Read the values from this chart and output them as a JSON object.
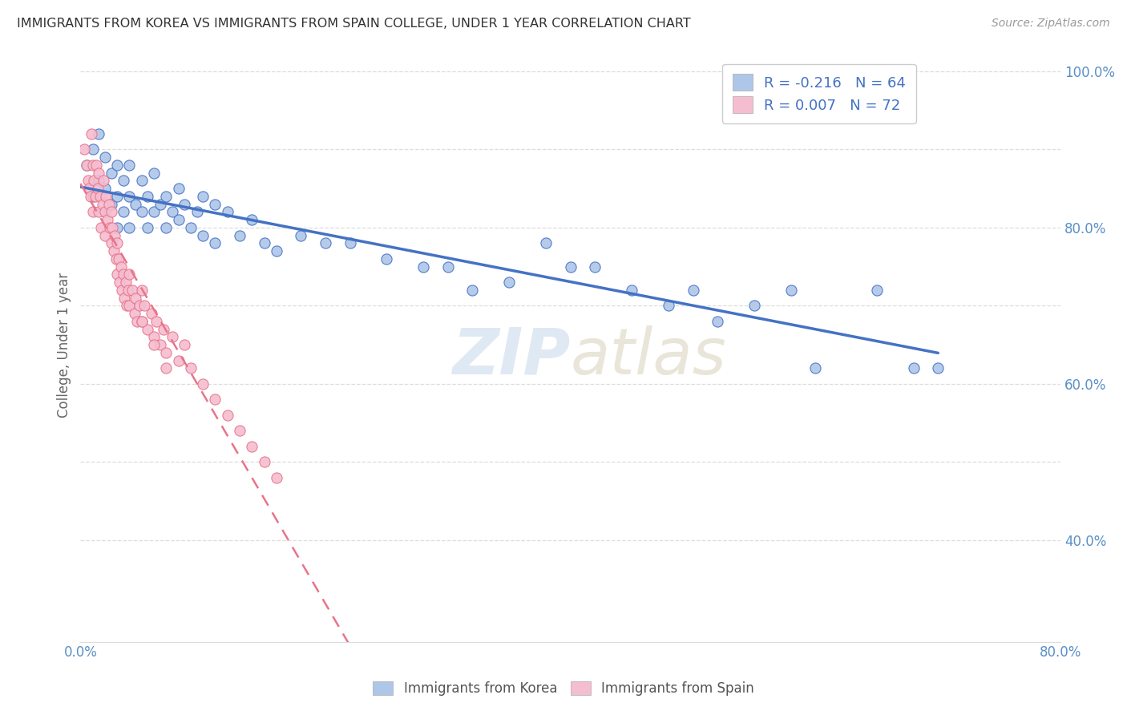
{
  "title": "IMMIGRANTS FROM KOREA VS IMMIGRANTS FROM SPAIN COLLEGE, UNDER 1 YEAR CORRELATION CHART",
  "source": "Source: ZipAtlas.com",
  "ylabel": "College, Under 1 year",
  "korea_R": -0.216,
  "korea_N": 64,
  "spain_R": 0.007,
  "spain_N": 72,
  "korea_color": "#aec6e8",
  "spain_color": "#f5bdd0",
  "korea_line_color": "#4472c4",
  "spain_line_color": "#e8748a",
  "korea_scatter_x": [
    0.005,
    0.01,
    0.01,
    0.015,
    0.015,
    0.02,
    0.02,
    0.02,
    0.025,
    0.025,
    0.03,
    0.03,
    0.03,
    0.035,
    0.035,
    0.04,
    0.04,
    0.04,
    0.045,
    0.05,
    0.05,
    0.055,
    0.055,
    0.06,
    0.06,
    0.065,
    0.07,
    0.07,
    0.075,
    0.08,
    0.08,
    0.085,
    0.09,
    0.095,
    0.1,
    0.1,
    0.11,
    0.11,
    0.12,
    0.13,
    0.14,
    0.15,
    0.16,
    0.18,
    0.2,
    0.22,
    0.25,
    0.3,
    0.35,
    0.4,
    0.45,
    0.5,
    0.55,
    0.6,
    0.65,
    0.7,
    0.28,
    0.32,
    0.38,
    0.42,
    0.48,
    0.52,
    0.58,
    0.68
  ],
  "korea_scatter_y": [
    0.88,
    0.9,
    0.84,
    0.92,
    0.86,
    0.89,
    0.85,
    0.82,
    0.87,
    0.83,
    0.88,
    0.84,
    0.8,
    0.86,
    0.82,
    0.88,
    0.84,
    0.8,
    0.83,
    0.86,
    0.82,
    0.84,
    0.8,
    0.87,
    0.82,
    0.83,
    0.84,
    0.8,
    0.82,
    0.85,
    0.81,
    0.83,
    0.8,
    0.82,
    0.84,
    0.79,
    0.83,
    0.78,
    0.82,
    0.79,
    0.81,
    0.78,
    0.77,
    0.79,
    0.78,
    0.78,
    0.76,
    0.75,
    0.73,
    0.75,
    0.72,
    0.72,
    0.7,
    0.62,
    0.72,
    0.62,
    0.75,
    0.72,
    0.78,
    0.75,
    0.7,
    0.68,
    0.72,
    0.62
  ],
  "spain_scatter_x": [
    0.003,
    0.005,
    0.006,
    0.007,
    0.008,
    0.009,
    0.01,
    0.01,
    0.011,
    0.012,
    0.013,
    0.014,
    0.015,
    0.015,
    0.016,
    0.017,
    0.018,
    0.019,
    0.02,
    0.02,
    0.021,
    0.022,
    0.023,
    0.024,
    0.025,
    0.025,
    0.026,
    0.027,
    0.028,
    0.029,
    0.03,
    0.03,
    0.031,
    0.032,
    0.033,
    0.034,
    0.035,
    0.036,
    0.037,
    0.038,
    0.039,
    0.04,
    0.04,
    0.042,
    0.044,
    0.045,
    0.046,
    0.048,
    0.05,
    0.05,
    0.052,
    0.055,
    0.058,
    0.06,
    0.062,
    0.065,
    0.068,
    0.07,
    0.075,
    0.08,
    0.085,
    0.09,
    0.1,
    0.11,
    0.12,
    0.13,
    0.14,
    0.15,
    0.16,
    0.05,
    0.06,
    0.07
  ],
  "spain_scatter_y": [
    0.9,
    0.88,
    0.86,
    0.85,
    0.84,
    0.92,
    0.82,
    0.88,
    0.86,
    0.84,
    0.88,
    0.85,
    0.82,
    0.87,
    0.84,
    0.8,
    0.83,
    0.86,
    0.82,
    0.79,
    0.84,
    0.81,
    0.83,
    0.8,
    0.78,
    0.82,
    0.8,
    0.77,
    0.79,
    0.76,
    0.78,
    0.74,
    0.76,
    0.73,
    0.75,
    0.72,
    0.74,
    0.71,
    0.73,
    0.7,
    0.72,
    0.74,
    0.7,
    0.72,
    0.69,
    0.71,
    0.68,
    0.7,
    0.72,
    0.68,
    0.7,
    0.67,
    0.69,
    0.66,
    0.68,
    0.65,
    0.67,
    0.64,
    0.66,
    0.63,
    0.65,
    0.62,
    0.6,
    0.58,
    0.56,
    0.54,
    0.52,
    0.5,
    0.48,
    0.68,
    0.65,
    0.62
  ],
  "xlim": [
    0.0,
    0.8
  ],
  "ylim": [
    0.27,
    1.03
  ],
  "grid_color": "#dddddd",
  "title_color": "#333333",
  "axis_color": "#5a8fc5",
  "label_color": "#666666"
}
